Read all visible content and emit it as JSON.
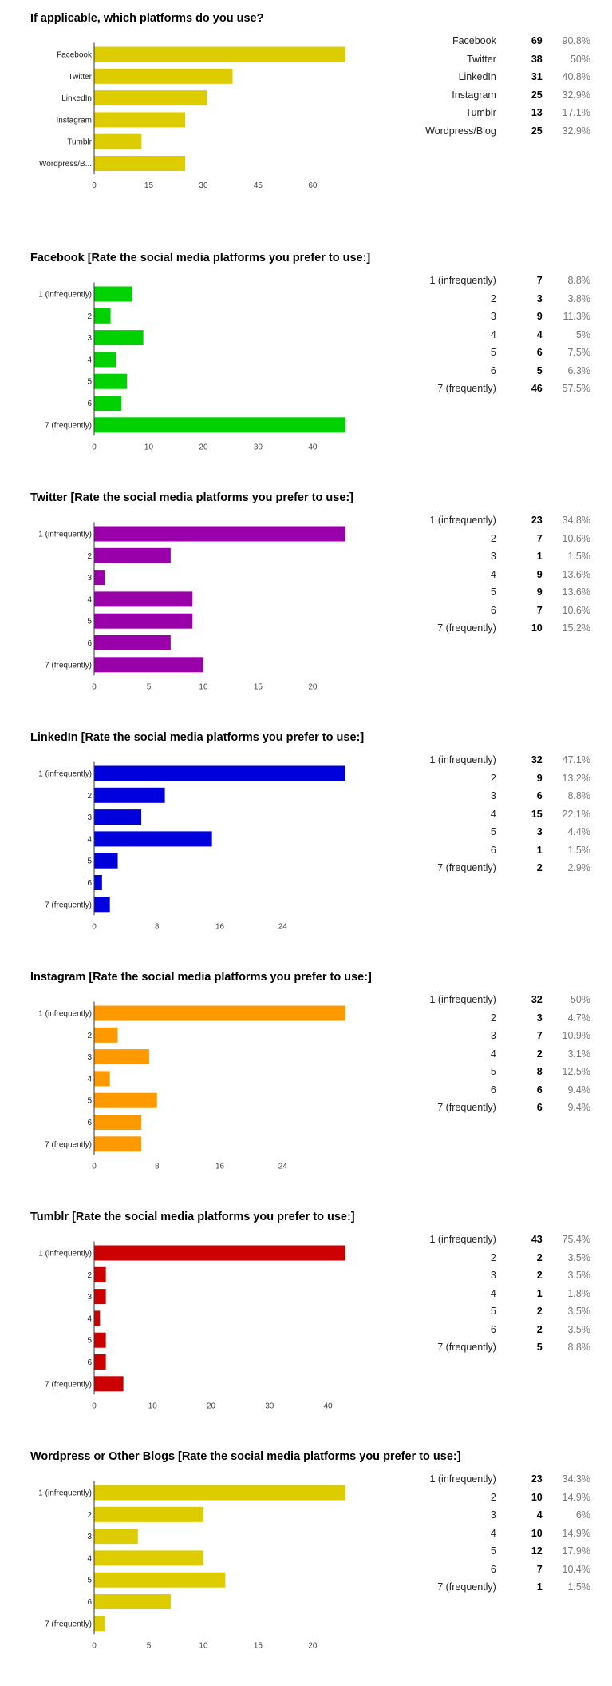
{
  "sections": [
    {
      "title": "If applicable, which platforms do you use?",
      "stats": [
        {
          "label": "Facebook",
          "count": "69",
          "pct": "90.8%"
        },
        {
          "label": "Twitter",
          "count": "38",
          "pct": "50%"
        },
        {
          "label": "LinkedIn",
          "count": "31",
          "pct": "40.8%"
        },
        {
          "label": "Instagram",
          "count": "25",
          "pct": "32.9%"
        },
        {
          "label": "Tumblr",
          "count": "13",
          "pct": "17.1%"
        },
        {
          "label": "Wordpress/Blog",
          "count": "25",
          "pct": "32.9%"
        }
      ]
    },
    {
      "title": "Facebook [Rate the social media platforms you prefer to use:]",
      "stats": [
        {
          "label": "1 (infrequently)",
          "count": "7",
          "pct": "8.8%"
        },
        {
          "label": "2",
          "count": "3",
          "pct": "3.8%"
        },
        {
          "label": "3",
          "count": "9",
          "pct": "11.3%"
        },
        {
          "label": "4",
          "count": "4",
          "pct": "5%"
        },
        {
          "label": "5",
          "count": "6",
          "pct": "7.5%"
        },
        {
          "label": "6",
          "count": "5",
          "pct": "6.3%"
        },
        {
          "label": "7 (frequently)",
          "count": "46",
          "pct": "57.5%"
        }
      ]
    },
    {
      "title": "Twitter [Rate the social media platforms you prefer to use:]",
      "stats": [
        {
          "label": "1 (infrequently)",
          "count": "23",
          "pct": "34.8%"
        },
        {
          "label": "2",
          "count": "7",
          "pct": "10.6%"
        },
        {
          "label": "3",
          "count": "1",
          "pct": "1.5%"
        },
        {
          "label": "4",
          "count": "9",
          "pct": "13.6%"
        },
        {
          "label": "5",
          "count": "9",
          "pct": "13.6%"
        },
        {
          "label": "6",
          "count": "7",
          "pct": "10.6%"
        },
        {
          "label": "7 (frequently)",
          "count": "10",
          "pct": "15.2%"
        }
      ]
    },
    {
      "title": "LinkedIn [Rate the social media platforms you prefer to use:]",
      "stats": [
        {
          "label": "1 (infrequently)",
          "count": "32",
          "pct": "47.1%"
        },
        {
          "label": "2",
          "count": "9",
          "pct": "13.2%"
        },
        {
          "label": "3",
          "count": "6",
          "pct": "8.8%"
        },
        {
          "label": "4",
          "count": "15",
          "pct": "22.1%"
        },
        {
          "label": "5",
          "count": "3",
          "pct": "4.4%"
        },
        {
          "label": "6",
          "count": "1",
          "pct": "1.5%"
        },
        {
          "label": "7 (frequently)",
          "count": "2",
          "pct": "2.9%"
        }
      ]
    },
    {
      "title": "Instagram [Rate the social media platforms you prefer to use:]",
      "stats": [
        {
          "label": "1 (infrequently)",
          "count": "32",
          "pct": "50%"
        },
        {
          "label": "2",
          "count": "3",
          "pct": "4.7%"
        },
        {
          "label": "3",
          "count": "7",
          "pct": "10.9%"
        },
        {
          "label": "4",
          "count": "2",
          "pct": "3.1%"
        },
        {
          "label": "5",
          "count": "8",
          "pct": "12.5%"
        },
        {
          "label": "6",
          "count": "6",
          "pct": "9.4%"
        },
        {
          "label": "7 (frequently)",
          "count": "6",
          "pct": "9.4%"
        }
      ]
    },
    {
      "title": "Tumblr [Rate the social media platforms you prefer to use:]",
      "stats": [
        {
          "label": "1 (infrequently)",
          "count": "43",
          "pct": "75.4%"
        },
        {
          "label": "2",
          "count": "2",
          "pct": "3.5%"
        },
        {
          "label": "3",
          "count": "2",
          "pct": "3.5%"
        },
        {
          "label": "4",
          "count": "1",
          "pct": "1.8%"
        },
        {
          "label": "5",
          "count": "2",
          "pct": "3.5%"
        },
        {
          "label": "6",
          "count": "2",
          "pct": "3.5%"
        },
        {
          "label": "7 (frequently)",
          "count": "5",
          "pct": "8.8%"
        }
      ]
    },
    {
      "title": "Wordpress or Other Blogs [Rate the social media platforms you prefer to use:]",
      "stats": [
        {
          "label": "1 (infrequently)",
          "count": "23",
          "pct": "34.3%"
        },
        {
          "label": "2",
          "count": "10",
          "pct": "14.9%"
        },
        {
          "label": "3",
          "count": "4",
          "pct": "6%"
        },
        {
          "label": "4",
          "count": "10",
          "pct": "14.9%"
        },
        {
          "label": "5",
          "count": "12",
          "pct": "17.9%"
        },
        {
          "label": "6",
          "count": "7",
          "pct": "10.4%"
        },
        {
          "label": "7 (frequently)",
          "count": "1",
          "pct": "1.5%"
        }
      ]
    }
  ],
  "chart_data": [
    {
      "type": "bar",
      "orientation": "horizontal",
      "title": "If applicable, which platforms do you use?",
      "categories": [
        "Facebook",
        "Twitter",
        "LinkedIn",
        "Instagram",
        "Tumblr",
        "Wordpress/B..."
      ],
      "values": [
        69,
        38,
        31,
        25,
        13,
        25
      ],
      "xlim": [
        0,
        69
      ],
      "xticks": [
        0,
        15,
        30,
        45,
        60
      ],
      "color": "#dccc00"
    },
    {
      "type": "bar",
      "orientation": "horizontal",
      "title": "Facebook [Rate the social media platforms you prefer to use:]",
      "categories": [
        "1 (infrequently)",
        "2",
        "3",
        "4",
        "5",
        "6",
        "7 (frequently)"
      ],
      "values": [
        7,
        3,
        9,
        4,
        6,
        5,
        46
      ],
      "xlim": [
        0,
        46
      ],
      "xticks": [
        0,
        10,
        20,
        30,
        40
      ],
      "color": "#00d100"
    },
    {
      "type": "bar",
      "orientation": "horizontal",
      "title": "Twitter [Rate the social media platforms you prefer to use:]",
      "categories": [
        "1 (infrequently)",
        "2",
        "3",
        "4",
        "5",
        "6",
        "7 (frequently)"
      ],
      "values": [
        23,
        7,
        1,
        9,
        9,
        7,
        10
      ],
      "xlim": [
        0,
        23
      ],
      "xticks": [
        0,
        5,
        10,
        15,
        20
      ],
      "color": "#9900aa"
    },
    {
      "type": "bar",
      "orientation": "horizontal",
      "title": "LinkedIn [Rate the social media platforms you prefer to use:]",
      "categories": [
        "1 (infrequently)",
        "2",
        "3",
        "4",
        "5",
        "6",
        "7 (frequently)"
      ],
      "values": [
        32,
        9,
        6,
        15,
        3,
        1,
        2
      ],
      "xlim": [
        0,
        32
      ],
      "xticks": [
        0,
        8,
        16,
        24
      ],
      "color": "#0000dd"
    },
    {
      "type": "bar",
      "orientation": "horizontal",
      "title": "Instagram [Rate the social media platforms you prefer to use:]",
      "categories": [
        "1 (infrequently)",
        "2",
        "3",
        "4",
        "5",
        "6",
        "7 (frequently)"
      ],
      "values": [
        32,
        3,
        7,
        2,
        8,
        6,
        6
      ],
      "xlim": [
        0,
        32
      ],
      "xticks": [
        0,
        8,
        16,
        24
      ],
      "color": "#ff9900"
    },
    {
      "type": "bar",
      "orientation": "horizontal",
      "title": "Tumblr [Rate the social media platforms you prefer to use:]",
      "categories": [
        "1 (infrequently)",
        "2",
        "3",
        "4",
        "5",
        "6",
        "7 (frequently)"
      ],
      "values": [
        43,
        2,
        2,
        1,
        2,
        2,
        5
      ],
      "xlim": [
        0,
        43
      ],
      "xticks": [
        0,
        10,
        20,
        30,
        40
      ],
      "color": "#cc0000"
    },
    {
      "type": "bar",
      "orientation": "horizontal",
      "title": "Wordpress or Other Blogs [Rate the social media platforms you prefer to use:]",
      "categories": [
        "1 (infrequently)",
        "2",
        "3",
        "4",
        "5",
        "6",
        "7 (frequently)"
      ],
      "values": [
        23,
        10,
        4,
        10,
        12,
        7,
        1
      ],
      "xlim": [
        0,
        23
      ],
      "xticks": [
        0,
        5,
        10,
        15,
        20
      ],
      "color": "#dccc00"
    }
  ]
}
